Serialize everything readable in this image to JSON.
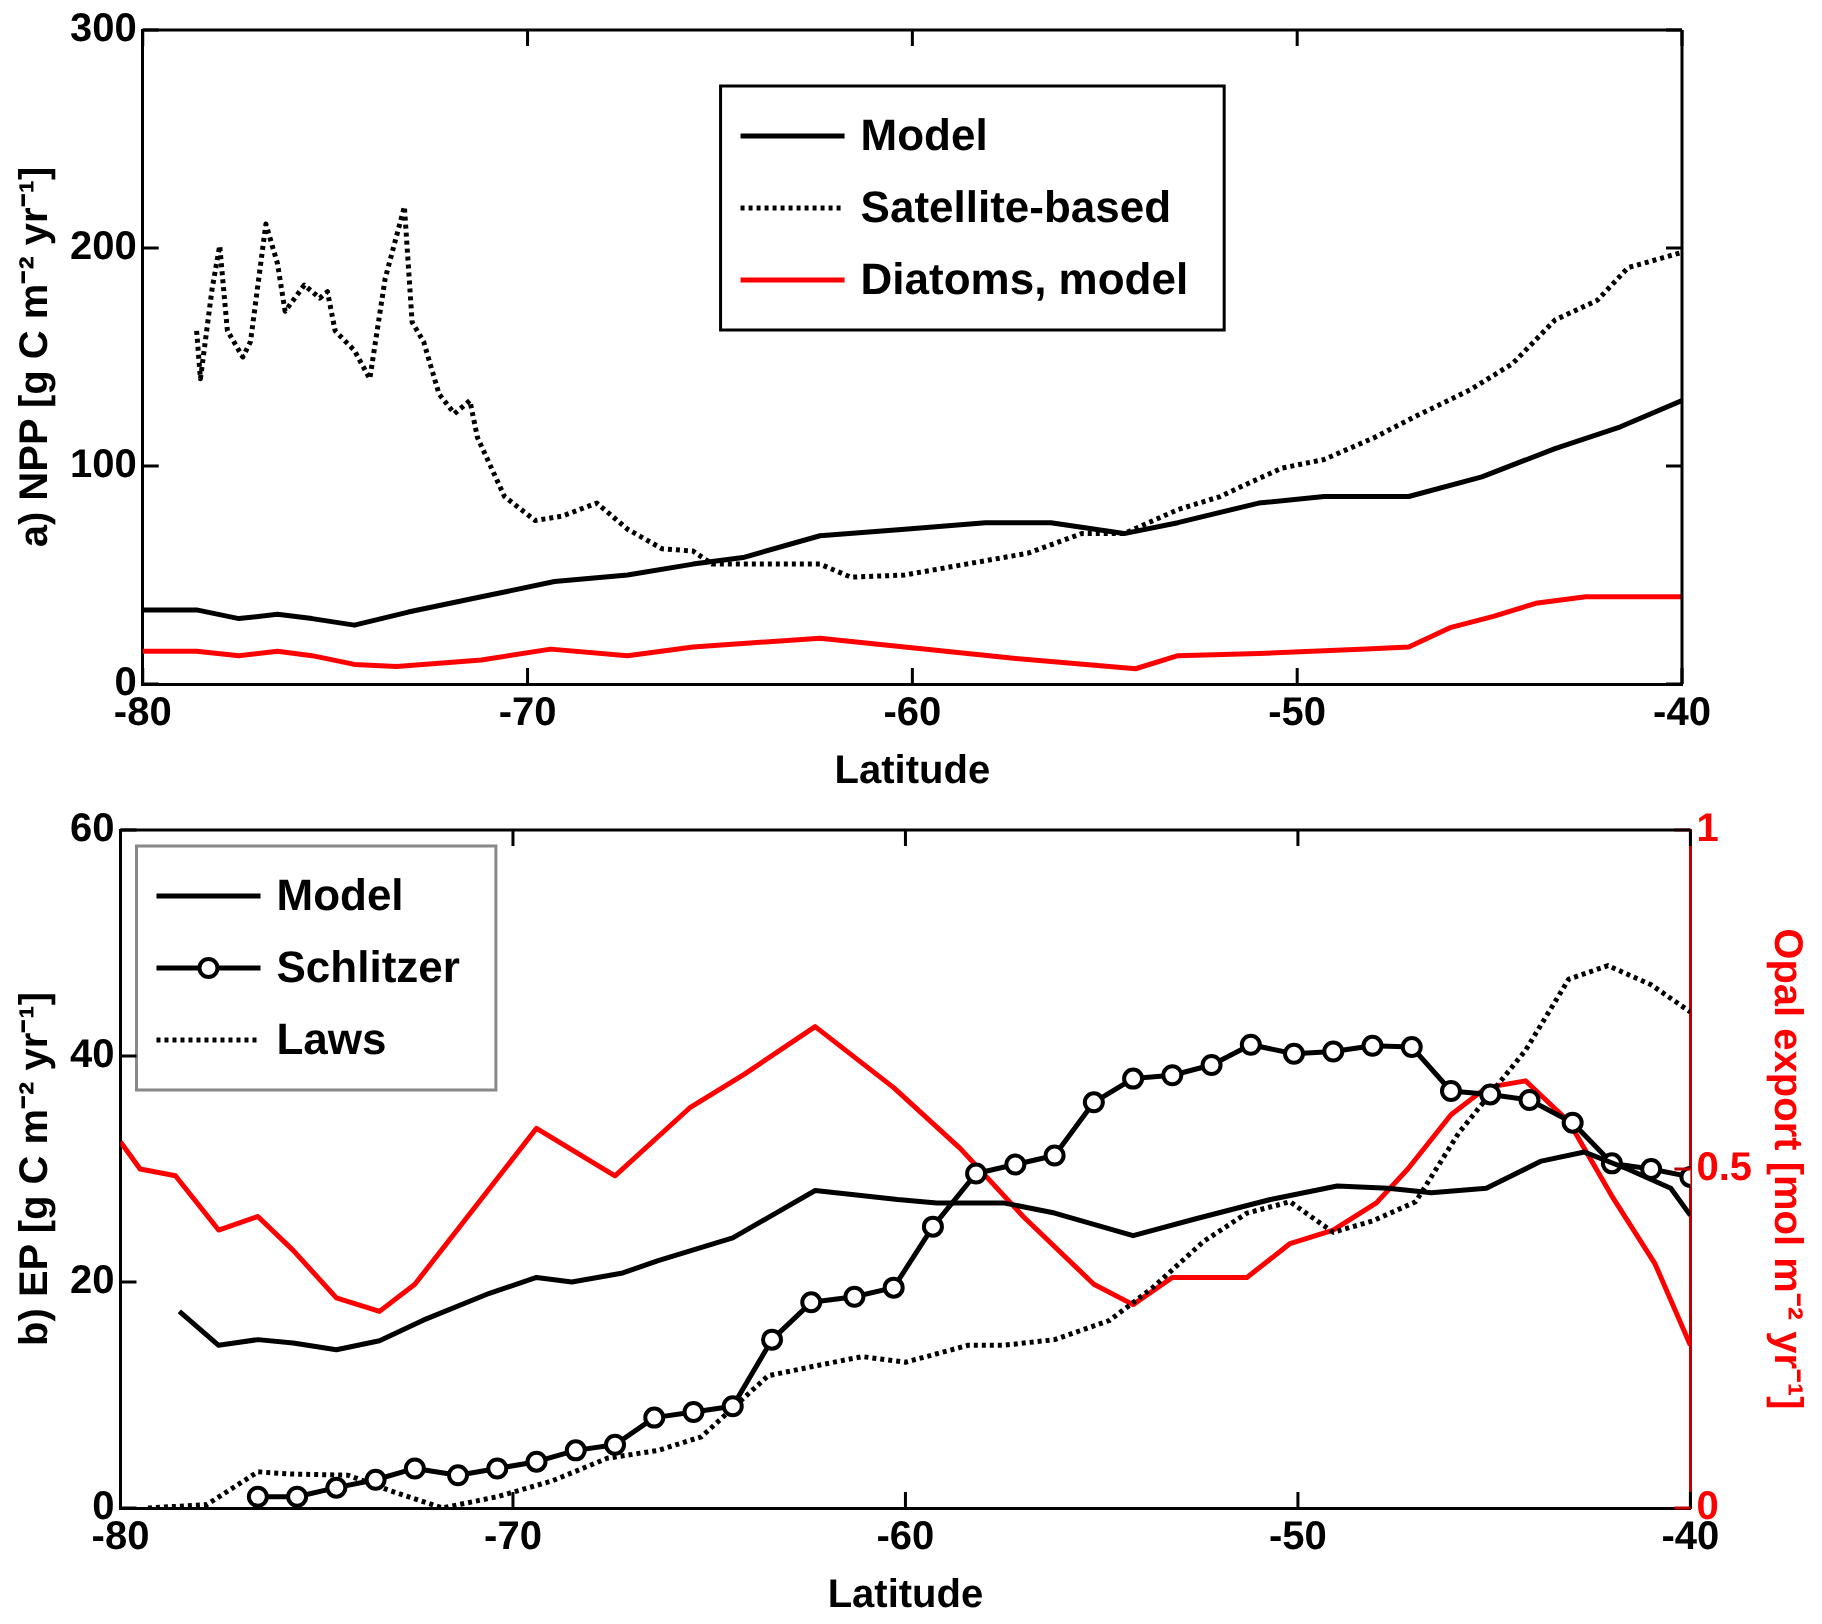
{
  "chart_data": [
    {
      "type": "line",
      "xlabel": "Latitude",
      "ylabel": "a) NPP [g C m⁻² yr⁻¹]",
      "xlim": [
        -80,
        -40
      ],
      "xticks": [
        -80,
        -70,
        -60,
        -50,
        -40
      ],
      "ylim": [
        0,
        300
      ],
      "yticks": [
        0,
        100,
        200,
        300
      ],
      "grid": false,
      "legend": "top",
      "series": [
        {
          "name": "Model",
          "color": "#000000",
          "line_style": "solid",
          "marker": "none",
          "x": [
            -80,
            -78.6,
            -77.5,
            -76.5,
            -75.6,
            -74.5,
            -73.1,
            -71.2,
            -69.3,
            -67.4,
            -65.7,
            -64.4,
            -62.4,
            -60.2,
            -58.1,
            -56.4,
            -54.5,
            -53.1,
            -51,
            -49.3,
            -47.1,
            -45.2,
            -43.3,
            -41.6,
            -40
          ],
          "values": [
            34,
            34,
            30,
            32,
            30,
            27,
            33,
            40,
            47,
            50,
            55,
            58,
            68,
            71,
            74,
            74,
            69,
            74,
            83,
            86,
            86,
            95,
            108,
            118,
            130
          ]
        },
        {
          "name": "Satellite-based",
          "color": "#000000",
          "line_style": "dotted",
          "marker": "none",
          "x": [
            -78.6,
            -78.5,
            -78.2,
            -78,
            -77.8,
            -77.4,
            -77.2,
            -76.8,
            -76.5,
            -76.3,
            -75.8,
            -75.4,
            -75.2,
            -75,
            -74.5,
            -74.1,
            -73.7,
            -73.2,
            -73,
            -72.7,
            -72.3,
            -71.9,
            -71.5,
            -71.3,
            -70.6,
            -69.8,
            -69.1,
            -68.2,
            -67.4,
            -66.5,
            -65.7,
            -65.2,
            -64.1,
            -62.4,
            -61.6,
            -60.2,
            -58.6,
            -57,
            -55.6,
            -54.5,
            -53.1,
            -52,
            -51.4,
            -50.4,
            -49.3,
            -48,
            -46.9,
            -45.5,
            -44.4,
            -43.3,
            -42.2,
            -41.4,
            -40
          ],
          "values": [
            162,
            140,
            181,
            201,
            162,
            150,
            157,
            211,
            193,
            171,
            183,
            177,
            180,
            162,
            153,
            140,
            186,
            219,
            166,
            157,
            133,
            124,
            130,
            113,
            86,
            75,
            77,
            83,
            71,
            62,
            61,
            55,
            55,
            55,
            49,
            50,
            55,
            60,
            69,
            69,
            80,
            86,
            91,
            99,
            103,
            113,
            123,
            135,
            147,
            167,
            176,
            191,
            198
          ]
        },
        {
          "name": "Diatoms, model",
          "color": "#ff0000",
          "line_style": "solid",
          "marker": "none",
          "x": [
            -80,
            -78.6,
            -77.5,
            -76.5,
            -75.6,
            -74.5,
            -73.4,
            -71.2,
            -69.4,
            -67.4,
            -65.7,
            -62.4,
            -60.2,
            -57.5,
            -54.2,
            -53.1,
            -51,
            -48.2,
            -47.1,
            -46,
            -44.9,
            -43.8,
            -42.5,
            -41.1,
            -40
          ],
          "values": [
            15,
            15,
            13,
            15,
            13,
            9,
            8,
            11,
            16,
            13,
            17,
            21,
            17,
            12,
            7,
            13,
            14,
            16,
            17,
            26,
            31,
            37,
            40,
            40,
            40
          ]
        }
      ]
    },
    {
      "type": "line",
      "xlabel": "Latitude",
      "ylabel": "b) EP [g C m⁻² yr⁻¹]",
      "y2label": "Opal export [mol m⁻² yr⁻¹]",
      "xlim": [
        -80,
        -40
      ],
      "xticks": [
        -80,
        -70,
        -60,
        -50,
        -40
      ],
      "ylim": [
        0,
        60
      ],
      "yticks": [
        0,
        20,
        40,
        60
      ],
      "y2lim": [
        0,
        1
      ],
      "y2ticks": [
        0,
        0.5,
        1
      ],
      "grid": false,
      "legend": "top left",
      "series": [
        {
          "name": "Model",
          "color": "#000000",
          "line_style": "solid",
          "marker": "none",
          "x": [
            -78.5,
            -77.5,
            -76.5,
            -75.6,
            -74.5,
            -73.4,
            -72.3,
            -70.6,
            -69.4,
            -68.5,
            -67.2,
            -66.3,
            -64.4,
            -63.3,
            -62.3,
            -60.2,
            -59.2,
            -57.5,
            -56.2,
            -54.2,
            -52.6,
            -50.7,
            -49,
            -47.7,
            -46.6,
            -45.2,
            -43.8,
            -42.7,
            -41.6,
            -40.5,
            -40
          ],
          "values": [
            17.4,
            14.4,
            14.9,
            14.6,
            14,
            14.8,
            16.6,
            19,
            20.4,
            20,
            20.8,
            21.9,
            23.9,
            26.1,
            28.1,
            27.3,
            27,
            27,
            26.1,
            24.1,
            25.6,
            27.3,
            28.5,
            28.3,
            27.9,
            28.3,
            30.7,
            31.5,
            30,
            28.3,
            25.9
          ]
        },
        {
          "name": "Schlitzer",
          "color": "#000000",
          "line_style": "solid",
          "marker": "circle",
          "x": [
            -76.5,
            -75.5,
            -74.5,
            -73.5,
            -72.5,
            -71.4,
            -70.4,
            -69.4,
            -68.4,
            -67.4,
            -66.4,
            -65.4,
            -64.4,
            -63.4,
            -62.4,
            -61.3,
            -60.3,
            -59.3,
            -58.2,
            -57.2,
            -56.2,
            -55.2,
            -54.2,
            -53.2,
            -52.2,
            -51.2,
            -50.1,
            -49.1,
            -48.1,
            -47.1,
            -46.1,
            -45.1,
            -44.1,
            -43,
            -42,
            -41,
            -40
          ],
          "values": [
            1,
            1,
            1.8,
            2.5,
            3.5,
            2.9,
            3.5,
            4.1,
            5.1,
            5.6,
            8,
            8.5,
            9,
            14.9,
            18.2,
            18.7,
            19.5,
            24.9,
            29.6,
            30.4,
            31.2,
            35.9,
            38,
            38.3,
            39.2,
            41,
            40.2,
            40.4,
            40.9,
            40.8,
            36.9,
            36.6,
            36.1,
            34.1,
            30.5,
            30,
            29.3
          ]
        },
        {
          "name": "Laws",
          "color": "#000000",
          "line_style": "dotted",
          "marker": "none",
          "x": [
            -79.3,
            -77.8,
            -76.5,
            -75.6,
            -74.2,
            -73.1,
            -71.8,
            -70.4,
            -69,
            -67.6,
            -66.3,
            -65.2,
            -63.5,
            -62.4,
            -61.1,
            -60,
            -58.4,
            -57.5,
            -56.2,
            -54.8,
            -53.7,
            -52.4,
            -51.3,
            -50.2,
            -49.1,
            -48.1,
            -47,
            -45.9,
            -44.2,
            -43.1,
            -42.1,
            -41,
            -40
          ],
          "values": [
            0,
            0.3,
            3.2,
            3,
            2.9,
            1.5,
            0,
            1,
            2.4,
            4.4,
            5.1,
            6.3,
            11.7,
            12.5,
            13.4,
            12.9,
            14.4,
            14.4,
            14.9,
            16.6,
            19.5,
            23.6,
            26.1,
            27.1,
            24.4,
            25.4,
            27.1,
            33.2,
            40.5,
            46.8,
            48,
            46.3,
            43.9
          ]
        },
        {
          "color": "#ff0000",
          "axis": "y2",
          "line_style": "solid",
          "marker": "none",
          "x": [
            -80,
            -79.5,
            -78.6,
            -77.5,
            -76.5,
            -75.6,
            -74.5,
            -73.4,
            -72.5,
            -69.4,
            -67.4,
            -65.5,
            -64.1,
            -62.3,
            -60.3,
            -58.6,
            -57,
            -55.2,
            -54.2,
            -53.2,
            -52.3,
            -51.3,
            -50.2,
            -49.1,
            -48,
            -47.2,
            -46.1,
            -45.2,
            -44.2,
            -43.1,
            -42,
            -40.9,
            -40
          ],
          "values": [
            0.54,
            0.5,
            0.49,
            0.41,
            0.43,
            0.38,
            0.31,
            0.29,
            0.33,
            0.56,
            0.49,
            0.59,
            0.64,
            0.71,
            0.62,
            0.53,
            0.43,
            0.33,
            0.3,
            0.34,
            0.34,
            0.34,
            0.39,
            0.41,
            0.45,
            0.5,
            0.58,
            0.62,
            0.63,
            0.57,
            0.46,
            0.36,
            0.24
          ]
        }
      ]
    }
  ]
}
